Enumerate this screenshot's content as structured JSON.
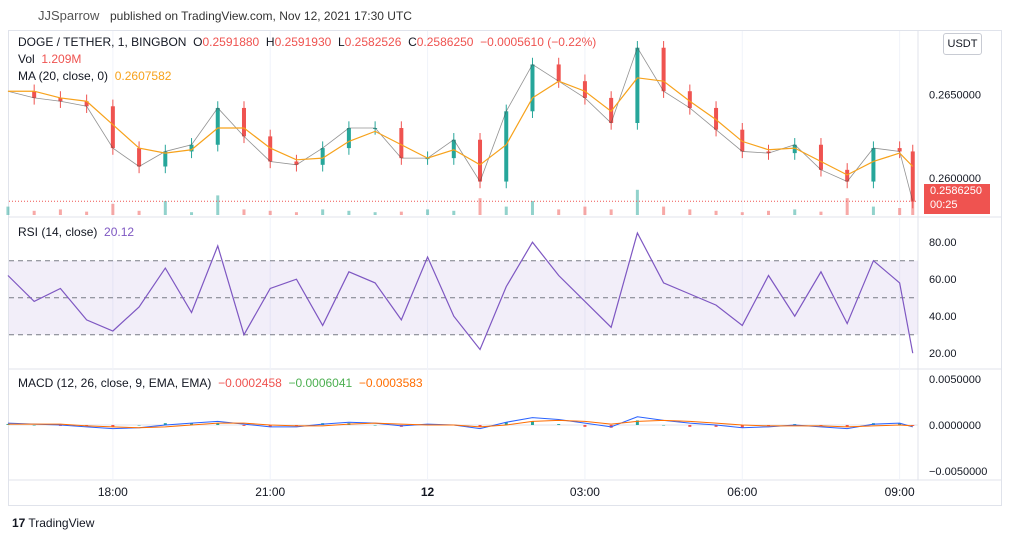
{
  "header": {
    "author": "JJSparrow",
    "published": "published on TradingView.com, Nov 12, 2021 17:30 UTC"
  },
  "legend": {
    "symbol": "DOGE / TETHER, 1, BINGBON",
    "o_label": "O",
    "o_value": "0.2591880",
    "h_label": "H",
    "h_value": "0.2591930",
    "l_label": "L",
    "l_value": "0.2582526",
    "c_label": "C",
    "c_value": "0.2586250",
    "change": "−0.0005610 (−0.22%)",
    "vol_label": "Vol",
    "vol_value": "1.209M",
    "ma_label": "MA (20, close, 0)",
    "ma_value": "0.2607582",
    "rsi_label": "RSI (14, close)",
    "rsi_value": "20.12",
    "macd_label": "MACD (12, 26, close, 9, EMA, EMA)",
    "macd_v1": "−0.0002458",
    "macd_v2": "−0.0006041",
    "macd_v3": "−0.0003583"
  },
  "currency_button": "USDT",
  "last_price": {
    "value": "0.2586250",
    "countdown": "00:25"
  },
  "colors": {
    "up": "#26a69a",
    "down": "#ef5350",
    "ma": "#f7a21b",
    "rsi": "#7e57c2",
    "macd": "#2962ff",
    "signal": "#ff6d00"
  },
  "chart_data": {
    "type": "line",
    "price_axis": {
      "ticks": [
        "0.2650000",
        "0.2600000"
      ],
      "tick_values": [
        0.265,
        0.26
      ],
      "range": [
        0.2578,
        0.2688
      ]
    },
    "rsi_axis": {
      "ticks": [
        "80.00",
        "60.00",
        "40.00",
        "20.00"
      ],
      "tick_values": [
        80,
        60,
        40,
        20
      ],
      "bands": [
        70,
        50,
        30
      ],
      "range": [
        12,
        92
      ]
    },
    "macd_axis": {
      "ticks": [
        "0.0050000",
        "0.0000000",
        "−0.0050000"
      ],
      "tick_values": [
        0.005,
        0,
        -0.005
      ],
      "range": [
        -0.006,
        0.006
      ]
    },
    "time_ticks": [
      "18:00",
      "21:00",
      "12",
      "03:00",
      "06:00",
      "09:00"
    ],
    "time_tick_hours": [
      18,
      21,
      24,
      27,
      30,
      33
    ],
    "time_range_hours": [
      16.02,
      33.35
    ],
    "x_hours": [
      16.0,
      16.5,
      17.0,
      17.5,
      18.0,
      18.5,
      19.0,
      19.5,
      20.0,
      20.5,
      21.0,
      21.5,
      22.0,
      22.5,
      23.0,
      23.5,
      24.0,
      24.5,
      25.0,
      25.5,
      26.0,
      26.5,
      27.0,
      27.5,
      28.0,
      28.5,
      29.0,
      29.5,
      30.0,
      30.5,
      31.0,
      31.5,
      32.0,
      32.5,
      33.0,
      33.25
    ],
    "close": [
      0.2652,
      0.2648,
      0.2646,
      0.2643,
      0.2618,
      0.2607,
      0.2616,
      0.262,
      0.2642,
      0.2625,
      0.261,
      0.2608,
      0.2618,
      0.263,
      0.263,
      0.2612,
      0.2612,
      0.2623,
      0.2598,
      0.264,
      0.2668,
      0.2658,
      0.2648,
      0.2633,
      0.2678,
      0.2652,
      0.2642,
      0.2629,
      0.2616,
      0.2615,
      0.262,
      0.2605,
      0.2598,
      0.2618,
      0.2616,
      0.2586
    ],
    "ma": [
      0.2652,
      0.2652,
      0.2648,
      0.2646,
      0.2632,
      0.2618,
      0.2615,
      0.2617,
      0.263,
      0.263,
      0.2618,
      0.2611,
      0.2612,
      0.2622,
      0.2628,
      0.262,
      0.2612,
      0.2617,
      0.2608,
      0.262,
      0.2648,
      0.2658,
      0.2652,
      0.264,
      0.266,
      0.2658,
      0.2646,
      0.2635,
      0.2622,
      0.2617,
      0.2618,
      0.261,
      0.2602,
      0.261,
      0.2615,
      0.2607
    ],
    "volume": [
      0.3,
      0.15,
      0.2,
      0.12,
      0.4,
      0.15,
      0.5,
      0.1,
      0.7,
      0.2,
      0.15,
      0.1,
      0.2,
      0.15,
      0.1,
      0.12,
      0.2,
      0.15,
      0.6,
      0.3,
      0.5,
      0.2,
      0.3,
      0.2,
      0.9,
      0.3,
      0.2,
      0.15,
      0.1,
      0.15,
      0.2,
      0.12,
      0.6,
      0.3,
      0.25,
      0.5
    ],
    "rsi": [
      62,
      48,
      55,
      38,
      32,
      45,
      66,
      42,
      78,
      30,
      55,
      60,
      35,
      64,
      58,
      38,
      72,
      40,
      22,
      56,
      80,
      62,
      48,
      34,
      85,
      58,
      52,
      46,
      35,
      62,
      40,
      64,
      36,
      70,
      58,
      20
    ],
    "macd": [
      0.0002,
      0.0001,
      0.0,
      -0.0002,
      -0.0004,
      -0.0003,
      0.0,
      0.0002,
      0.0004,
      0.0001,
      -0.0002,
      -0.0002,
      0.0001,
      0.0003,
      0.0002,
      -0.0001,
      0.0001,
      0.0,
      -0.0004,
      0.0003,
      0.0008,
      0.0006,
      0.0002,
      -0.0002,
      0.0009,
      0.0005,
      0.0002,
      0.0,
      -0.0003,
      -0.0002,
      0.0,
      -0.0002,
      -0.0004,
      0.0001,
      0.0002,
      -0.0002
    ],
    "signal": [
      0.0001,
      0.0001,
      0.0001,
      -0.0001,
      -0.0002,
      -0.0003,
      -0.0002,
      0.0,
      0.0002,
      0.0002,
      0.0,
      -0.0001,
      -0.0001,
      0.0001,
      0.0002,
      0.0001,
      0.0,
      0.0,
      -0.0002,
      0.0,
      0.0004,
      0.0005,
      0.0004,
      0.0001,
      0.0004,
      0.0005,
      0.0004,
      0.0002,
      0.0,
      -0.0001,
      -0.0001,
      -0.0001,
      -0.0002,
      -0.0001,
      0.0,
      -0.0001
    ],
    "last_close": 0.258625
  },
  "footer": {
    "brand": "TradingView",
    "mark": "17"
  }
}
